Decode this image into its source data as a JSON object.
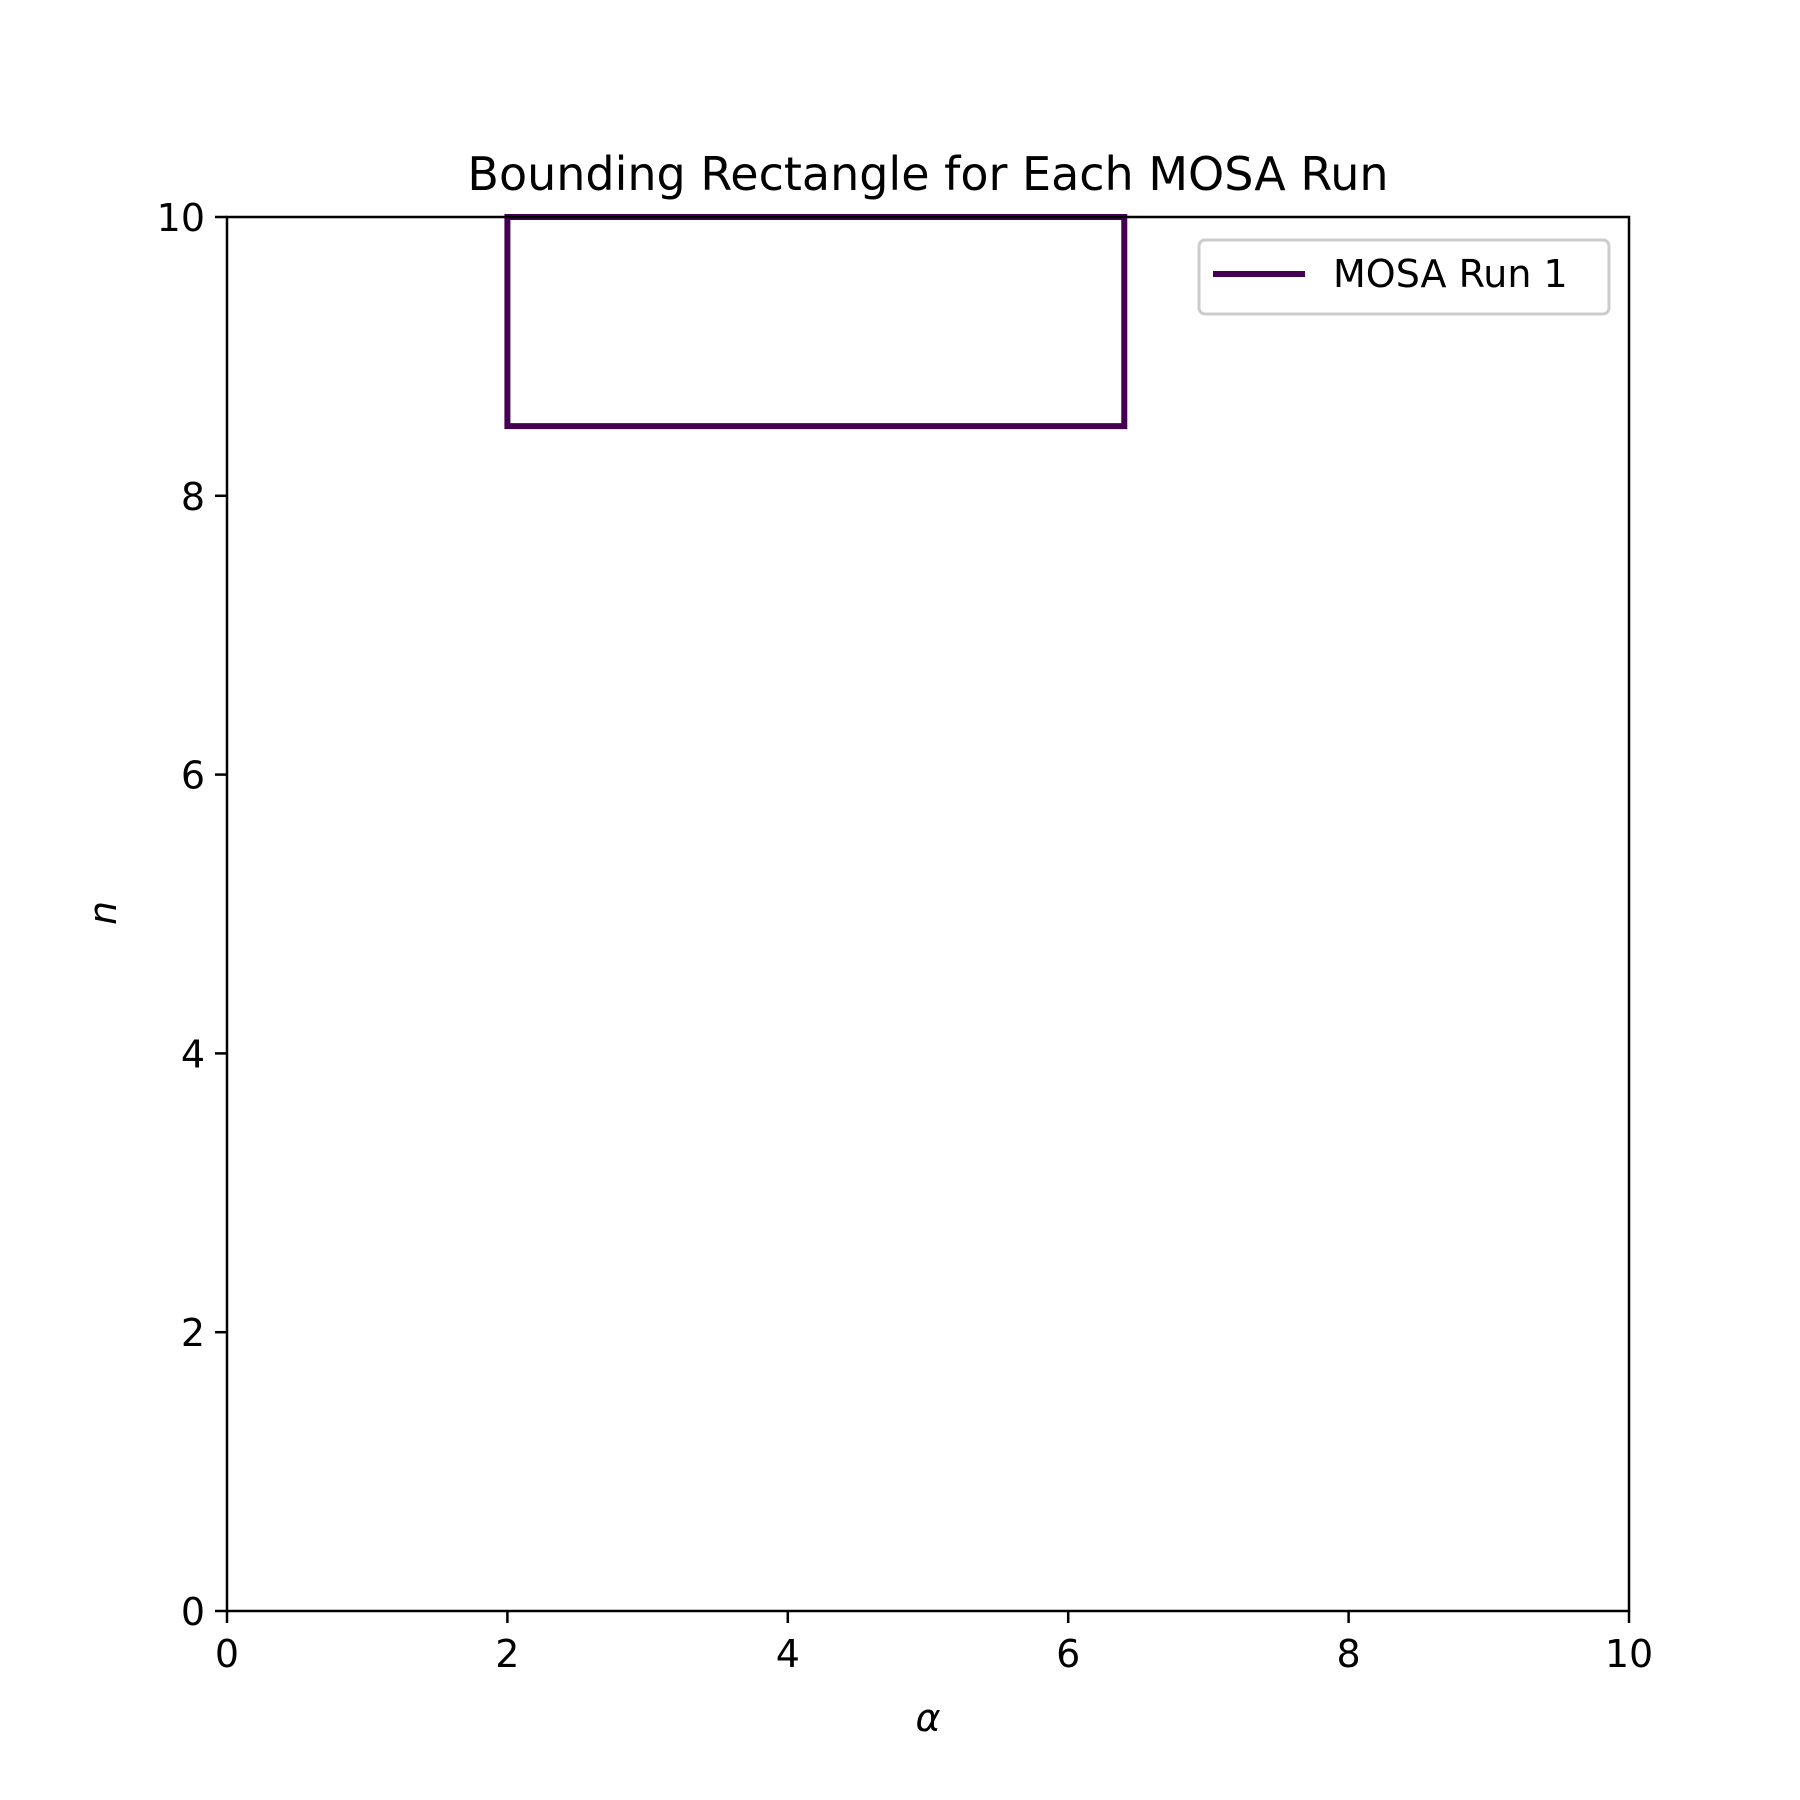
{
  "chart_data": {
    "type": "line",
    "title": "Bounding Rectangle for Each MOSA Run",
    "xlabel": "α",
    "ylabel": "n",
    "xlim": [
      0,
      10
    ],
    "ylim": [
      0,
      10
    ],
    "xticks": [
      0,
      2,
      4,
      6,
      8,
      10
    ],
    "yticks": [
      0,
      2,
      4,
      6,
      8,
      10
    ],
    "grid": false,
    "legend_position": "top-right",
    "series": [
      {
        "name": "MOSA Run 1",
        "color": "#440154",
        "x": [
          2.0,
          6.4,
          6.4,
          2.0,
          2.0
        ],
        "y": [
          8.5,
          8.5,
          10.0,
          10.0,
          8.5
        ]
      }
    ]
  }
}
